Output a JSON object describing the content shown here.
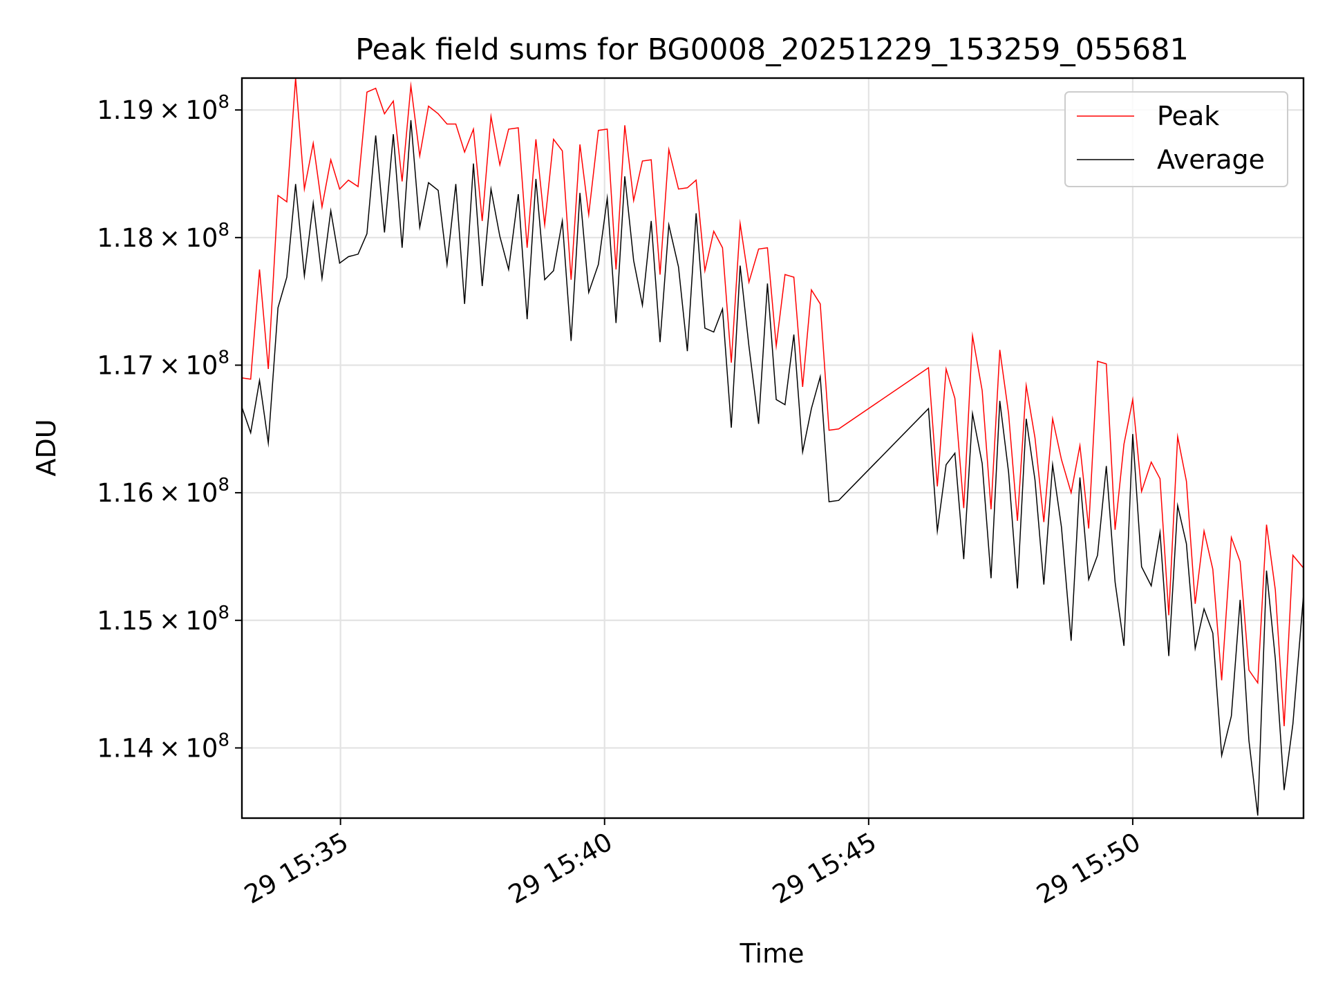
{
  "chart_data": {
    "type": "line",
    "title": "Peak field sums for BG0008_20251229_153259_055681",
    "xlabel": "Time",
    "ylabel": "ADU",
    "xlim": [
      "29 15:33:08",
      "29 15:53:14"
    ],
    "ylim": [
      113450000,
      119250000
    ],
    "x_ticks": [
      {
        "label": "29 15:35",
        "time": "29 15:35:00"
      },
      {
        "label": "29 15:40",
        "time": "29 15:40:00"
      },
      {
        "label": "29 15:45",
        "time": "29 15:45:00"
      },
      {
        "label": "29 15:50",
        "time": "29 15:50:00"
      }
    ],
    "y_ticks": [
      {
        "mantissa": "1.14",
        "exponent": "8",
        "value": 114000000
      },
      {
        "mantissa": "1.15",
        "exponent": "8",
        "value": 115000000
      },
      {
        "mantissa": "1.16",
        "exponent": "8",
        "value": 116000000
      },
      {
        "mantissa": "1.17",
        "exponent": "8",
        "value": 117000000
      },
      {
        "mantissa": "1.18",
        "exponent": "8",
        "value": 118000000
      },
      {
        "mantissa": "1.19",
        "exponent": "8",
        "value": 119000000
      }
    ],
    "grid": true,
    "legend_position": "top-right",
    "x": [
      "29 15:33:08",
      "29 15:33:18",
      "29 15:33:28",
      "29 15:33:38",
      "29 15:33:49",
      "29 15:33:59",
      "29 15:34:09",
      "29 15:34:19",
      "29 15:34:29",
      "29 15:34:39",
      "29 15:34:49",
      "29 15:34:59",
      "29 15:35:09",
      "29 15:35:20",
      "29 15:35:30",
      "29 15:35:40",
      "29 15:35:50",
      "29 15:36:00",
      "29 15:36:10",
      "29 15:36:20",
      "29 15:36:30",
      "29 15:36:40",
      "29 15:36:51",
      "29 15:37:01",
      "29 15:37:11",
      "29 15:37:21",
      "29 15:37:31",
      "29 15:37:41",
      "29 15:37:51",
      "29 15:38:01",
      "29 15:38:11",
      "29 15:38:22",
      "29 15:38:32",
      "29 15:38:42",
      "29 15:38:52",
      "29 15:39:02",
      "29 15:39:12",
      "29 15:39:22",
      "29 15:39:32",
      "29 15:39:42",
      "29 15:39:53",
      "29 15:40:03",
      "29 15:40:13",
      "29 15:40:23",
      "29 15:40:33",
      "29 15:40:43",
      "29 15:40:53",
      "29 15:41:03",
      "29 15:41:13",
      "29 15:41:24",
      "29 15:41:34",
      "29 15:41:44",
      "29 15:41:54",
      "29 15:42:04",
      "29 15:42:14",
      "29 15:42:24",
      "29 15:42:34",
      "29 15:42:44",
      "29 15:42:55",
      "29 15:43:05",
      "29 15:43:15",
      "29 15:43:25",
      "29 15:43:35",
      "29 15:43:45",
      "29 15:43:55",
      "29 15:44:05",
      "29 15:44:15",
      "29 15:44:26",
      "29 15:46:08",
      "29 15:46:18",
      "29 15:46:28",
      "29 15:46:38",
      "29 15:46:48",
      "29 15:46:58",
      "29 15:47:09",
      "29 15:47:19",
      "29 15:47:29",
      "29 15:47:39",
      "29 15:47:49",
      "29 15:47:59",
      "29 15:48:09",
      "29 15:48:19",
      "29 15:48:29",
      "29 15:48:39",
      "29 15:48:50",
      "29 15:49:00",
      "29 15:49:10",
      "29 15:49:20",
      "29 15:49:30",
      "29 15:49:40",
      "29 15:49:50",
      "29 15:50:00",
      "29 15:50:10",
      "29 15:50:21",
      "29 15:50:31",
      "29 15:50:41",
      "29 15:50:51",
      "29 15:51:01",
      "29 15:51:11",
      "29 15:51:21",
      "29 15:51:31",
      "29 15:51:41",
      "29 15:51:52",
      "29 15:52:02",
      "29 15:52:12",
      "29 15:52:22",
      "29 15:52:32",
      "29 15:52:42",
      "29 15:52:52",
      "29 15:53:02",
      "29 15:53:14"
    ],
    "series": [
      {
        "name": "Peak",
        "color": "#ff0000",
        "values": [
          116900000,
          116890000,
          117750000,
          116970000,
          118330000,
          118280000,
          119250000,
          118380000,
          118740000,
          118240000,
          118610000,
          118380000,
          118450000,
          118400000,
          119140000,
          119170000,
          118970000,
          119070000,
          118440000,
          119190000,
          118640000,
          119030000,
          118970000,
          118890000,
          118890000,
          118670000,
          118850000,
          118130000,
          118950000,
          118570000,
          118850000,
          118860000,
          117920000,
          118770000,
          118100000,
          118770000,
          118680000,
          117670000,
          118730000,
          118180000,
          118840000,
          118850000,
          117750000,
          118880000,
          118290000,
          118600000,
          118610000,
          117710000,
          118690000,
          118380000,
          118390000,
          118450000,
          117740000,
          118050000,
          117920000,
          117020000,
          118110000,
          117650000,
          117910000,
          117920000,
          117150000,
          117710000,
          117690000,
          116830000,
          117590000,
          117480000,
          116490000,
          116500000,
          116980000,
          116050000,
          116970000,
          116740000,
          115880000,
          117230000,
          116800000,
          115870000,
          117120000,
          116620000,
          115780000,
          116840000,
          116430000,
          115770000,
          116580000,
          116260000,
          116000000,
          116370000,
          115720000,
          117030000,
          117010000,
          115710000,
          116380000,
          116730000,
          116010000,
          116240000,
          116110000,
          115040000,
          116440000,
          116090000,
          115130000,
          115700000,
          115400000,
          114530000,
          115650000,
          115460000,
          114610000,
          114510000,
          115750000,
          115240000,
          114170000,
          115510000,
          115410000
        ]
      },
      {
        "name": "Average",
        "color": "#000000",
        "values": [
          116670000,
          116470000,
          116880000,
          116390000,
          117450000,
          117690000,
          118420000,
          117700000,
          118270000,
          117680000,
          118210000,
          117800000,
          117850000,
          117870000,
          118030000,
          118800000,
          118040000,
          118810000,
          117920000,
          118920000,
          118080000,
          118430000,
          118370000,
          117790000,
          118420000,
          117480000,
          118580000,
          117620000,
          118380000,
          118010000,
          117750000,
          118340000,
          117360000,
          118460000,
          117670000,
          117740000,
          118130000,
          117190000,
          118350000,
          117570000,
          117790000,
          118310000,
          117330000,
          118480000,
          117820000,
          117470000,
          118130000,
          117180000,
          118100000,
          117770000,
          117110000,
          118190000,
          117290000,
          117260000,
          117440000,
          116510000,
          117780000,
          117150000,
          116540000,
          117640000,
          116730000,
          116690000,
          117240000,
          116320000,
          116660000,
          116910000,
          115930000,
          115940000,
          116660000,
          115700000,
          116220000,
          116310000,
          115480000,
          116620000,
          116230000,
          115330000,
          116720000,
          116160000,
          115250000,
          116580000,
          116100000,
          115280000,
          116220000,
          115730000,
          114840000,
          116120000,
          115320000,
          115510000,
          116210000,
          115300000,
          114800000,
          116460000,
          115420000,
          115270000,
          115690000,
          114720000,
          115900000,
          115600000,
          114780000,
          115090000,
          114900000,
          113940000,
          114250000,
          115160000,
          114060000,
          113470000,
          115390000,
          114700000,
          113670000,
          114190000,
          115200000
        ]
      }
    ]
  }
}
